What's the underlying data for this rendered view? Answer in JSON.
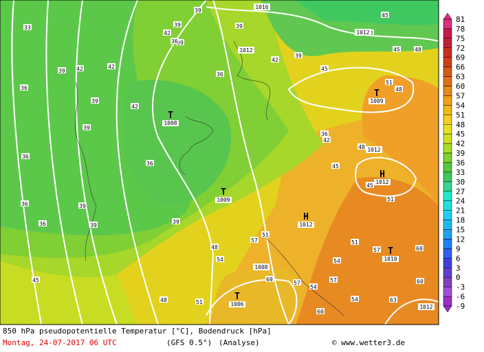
{
  "header": {
    "title": "850 hPa pseudopotentielle Temperatur [°C], Bodendruck [hPa]"
  },
  "footer": {
    "date": "Montag, 24-07-2017  06 UTC",
    "model": "(GFS 0.5°)",
    "run": "(Analyse)",
    "credit": "© www.wetter3.de"
  },
  "colorbar": {
    "levels": [
      81,
      78,
      75,
      72,
      69,
      66,
      63,
      60,
      57,
      54,
      51,
      48,
      45,
      42,
      39,
      36,
      33,
      30,
      27,
      24,
      21,
      18,
      15,
      12,
      9,
      6,
      3,
      0,
      -3,
      -6,
      -9
    ],
    "colors": [
      "#d8307a",
      "#c81850",
      "#c02038",
      "#c83020",
      "#d04018",
      "#d85818",
      "#e07018",
      "#e88818",
      "#f0a018",
      "#f0b818",
      "#f0d020",
      "#e8e020",
      "#d0e020",
      "#a8dc28",
      "#80d030",
      "#58c840",
      "#40c860",
      "#30d890",
      "#20e8c8",
      "#20e0e0",
      "#20d0f0",
      "#20b8f0",
      "#20a0f0",
      "#2080f0",
      "#3060f0",
      "#4040e0",
      "#6040d0",
      "#8040c0",
      "#a050d8",
      "#9b30c8"
    ]
  },
  "pressure_centers": [
    {
      "symbol": "T",
      "value": "1008"
    },
    {
      "symbol": "T",
      "value": "1009"
    },
    {
      "symbol": "H",
      "value": "1012"
    },
    {
      "symbol": "T",
      "value": "1009"
    },
    {
      "symbol": "H",
      "value": "1012"
    },
    {
      "symbol": "T",
      "value": "1010"
    },
    {
      "symbol": "T",
      "value": "1006"
    }
  ],
  "isobar_labels": [
    "1016",
    "1012",
    "1012",
    "1012",
    "1008",
    "1012"
  ],
  "contour_labels": [
    "33",
    "39",
    "42",
    "36",
    "39",
    "39",
    "36",
    "39",
    "36",
    "42",
    "42",
    "39",
    "39",
    "36",
    "42",
    "39",
    "36",
    "39",
    "36",
    "39",
    "45",
    "51",
    "48",
    "48",
    "39",
    "42",
    "45",
    "48",
    "45",
    "51",
    "36",
    "39",
    "42",
    "42",
    "45",
    "45",
    "36",
    "48",
    "54",
    "51",
    "57",
    "51",
    "54",
    "57",
    "57",
    "60",
    "57",
    "54",
    "60",
    "63",
    "60",
    "45",
    "48",
    "51",
    "60",
    "54"
  ]
}
